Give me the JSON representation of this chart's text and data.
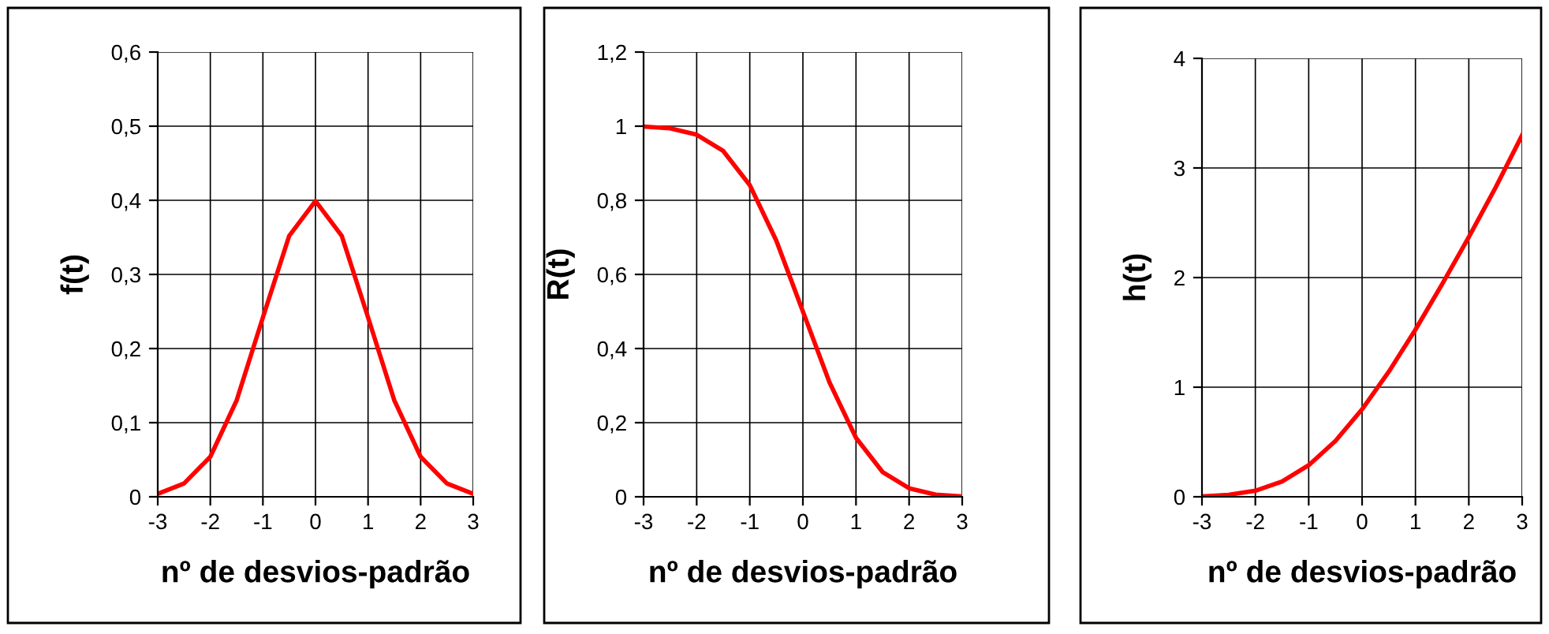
{
  "chart_data": [
    {
      "type": "line",
      "xlabel": "nº de desvios-padrão",
      "ylabel": "f(t)",
      "x": [
        -3,
        -2.5,
        -2,
        -1.5,
        -1,
        -0.5,
        0,
        0.5,
        1,
        1.5,
        2,
        2.5,
        3
      ],
      "series": [
        {
          "color": "#ff0000",
          "values": [
            0.004,
            0.018,
            0.054,
            0.13,
            0.242,
            0.352,
            0.399,
            0.352,
            0.242,
            0.13,
            0.054,
            0.018,
            0.004
          ]
        }
      ],
      "xlim": [
        -3,
        3
      ],
      "xticks": [
        -3,
        -2,
        -1,
        0,
        1,
        2,
        3
      ],
      "ylim": [
        0,
        0.6
      ],
      "yticks": [
        0,
        {
          "value": 0.1,
          "label": "0,1"
        },
        {
          "value": 0.2,
          "label": "0,2"
        },
        {
          "value": 0.3,
          "label": "0,3"
        },
        {
          "value": 0.4,
          "label": "0,4"
        },
        {
          "value": 0.5,
          "label": "0,5"
        },
        {
          "value": 0.6,
          "label": "0,6"
        }
      ],
      "grid": true,
      "marker": "none",
      "line_style": "solid"
    },
    {
      "type": "line",
      "xlabel": "nº de desvios-padrão",
      "ylabel": "R(t)",
      "x": [
        -3,
        -2.5,
        -2,
        -1.5,
        -1,
        -0.5,
        0,
        0.5,
        1,
        1.5,
        2,
        2.5,
        3
      ],
      "series": [
        {
          "color": "#ff0000",
          "values": [
            0.999,
            0.994,
            0.977,
            0.933,
            0.841,
            0.691,
            0.5,
            0.309,
            0.159,
            0.067,
            0.023,
            0.006,
            0.001
          ]
        }
      ],
      "xlim": [
        -3,
        3
      ],
      "xticks": [
        -3,
        -2,
        -1,
        0,
        1,
        2,
        3
      ],
      "ylim": [
        0,
        1.2
      ],
      "yticks": [
        0,
        {
          "value": 0.2,
          "label": "0,2"
        },
        {
          "value": 0.4,
          "label": "0,4"
        },
        {
          "value": 0.6,
          "label": "0,6"
        },
        {
          "value": 0.8,
          "label": "0,8"
        },
        1,
        {
          "value": 1.2,
          "label": "1,2"
        }
      ],
      "grid": true,
      "marker": "none",
      "line_style": "solid"
    },
    {
      "type": "line",
      "xlabel": "nº de desvios-padrão",
      "ylabel": "h(t)",
      "x": [
        -3,
        -2.5,
        -2,
        -1.5,
        -1,
        -0.5,
        0,
        0.5,
        1,
        1.5,
        2,
        2.5,
        3
      ],
      "series": [
        {
          "color": "#ff0000",
          "values": [
            0.004,
            0.018,
            0.055,
            0.139,
            0.288,
            0.509,
            0.798,
            1.141,
            1.525,
            1.94,
            2.37,
            2.82,
            3.3
          ]
        }
      ],
      "xlim": [
        -3,
        3
      ],
      "xticks": [
        -3,
        -2,
        -1,
        0,
        1,
        2,
        3
      ],
      "ylim": [
        0,
        4
      ],
      "yticks": [
        0,
        1,
        2,
        3,
        4
      ],
      "grid": true,
      "marker": "none",
      "line_style": "solid"
    }
  ]
}
